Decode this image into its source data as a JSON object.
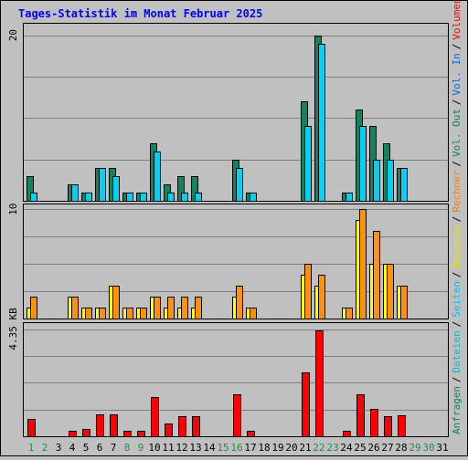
{
  "chart_data": {
    "type": "bar",
    "title": "Tages-Statistik im Monat Februar 2025",
    "grid": true,
    "categories": [
      "1",
      "2",
      "3",
      "4",
      "5",
      "6",
      "7",
      "8",
      "9",
      "10",
      "11",
      "12",
      "13",
      "14",
      "15",
      "16",
      "17",
      "18",
      "19",
      "20",
      "21",
      "22",
      "23",
      "24",
      "25",
      "26",
      "27",
      "28",
      "29",
      "30",
      "31"
    ],
    "weekend_days": [
      "1",
      "2",
      "8",
      "9",
      "15",
      "16",
      "22",
      "23",
      "29",
      "30"
    ],
    "colors": {
      "background": "#c0c0c0",
      "plot_background": "#c0c0c0",
      "grid": "#808080",
      "title": "#0000ff",
      "weekday_label": "#000000",
      "weekend_label": "#2a8a55"
    },
    "panels": [
      {
        "name": "requests",
        "y_tick_label": "20",
        "ylim": [
          0,
          20
        ],
        "series": [
          {
            "name": "Anfragen",
            "color": "#128261",
            "values": [
              3,
              0,
              0,
              2,
              1,
              4,
              4,
              1,
              1,
              7,
              2,
              3,
              3,
              0,
              0,
              5,
              1,
              0,
              0,
              0,
              12,
              20,
              0,
              1,
              11,
              9,
              7,
              4,
              0,
              0,
              0
            ]
          },
          {
            "name": "Dateien",
            "color": "#00d2f5",
            "values": [
              1,
              0,
              0,
              2,
              1,
              4,
              3,
              1,
              1,
              6,
              1,
              1,
              1,
              0,
              0,
              4,
              1,
              0,
              0,
              0,
              9,
              19,
              0,
              1,
              9,
              5,
              5,
              4,
              0,
              0,
              0
            ]
          },
          {
            "name": "Seiten",
            "color": "#00d2f5",
            "values": [
              0,
              0,
              0,
              0,
              0,
              0,
              0,
              0,
              0,
              0,
              0,
              0,
              0,
              0,
              0,
              0,
              0,
              0,
              0,
              0,
              0,
              0,
              0,
              0,
              0,
              0,
              0,
              0,
              0,
              0,
              0
            ]
          }
        ]
      },
      {
        "name": "visits",
        "y_tick_label": "10",
        "ylim": [
          0,
          10
        ],
        "series": [
          {
            "name": "Besuche",
            "color": "#ffff00",
            "values": [
              1,
              0,
              0,
              2,
              1,
              1,
              3,
              1,
              1,
              2,
              1,
              1,
              1,
              0,
              0,
              2,
              1,
              0,
              0,
              0,
              4,
              3,
              0,
              1,
              9,
              5,
              5,
              3,
              0,
              0,
              0
            ]
          },
          {
            "name": "Rechner",
            "color": "#ff9010",
            "values": [
              2,
              0,
              0,
              2,
              1,
              1,
              3,
              1,
              1,
              2,
              2,
              2,
              2,
              0,
              0,
              3,
              1,
              0,
              0,
              0,
              5,
              4,
              0,
              1,
              10,
              8,
              5,
              3,
              0,
              0,
              0
            ]
          }
        ]
      },
      {
        "name": "volume",
        "y_tick_label": "4.35 KB",
        "ylim": [
          0,
          4.35
        ],
        "series": [
          {
            "name": "Volumen",
            "color": "#ff0000",
            "values": [
              0.7,
              0,
              0,
              0.24,
              0.3,
              0.9,
              0.9,
              0.24,
              0.24,
              1.6,
              0.5,
              0.8,
              0.8,
              0,
              0,
              1.7,
              0.24,
              0,
              0,
              0,
              2.6,
              4.3,
              0,
              0.24,
              1.7,
              1.1,
              0.8,
              0.85,
              0,
              0,
              0
            ]
          }
        ]
      }
    ],
    "legend_items": [
      {
        "text": "Anfragen",
        "color": "#128261"
      },
      {
        "text": "/",
        "color": "#000000"
      },
      {
        "text": "Dateien",
        "color": "#00bbcc"
      },
      {
        "text": "/",
        "color": "#000000"
      },
      {
        "text": "Seiten",
        "color": "#00c0ff"
      },
      {
        "text": "/",
        "color": "#000000"
      },
      {
        "text": "Besuche",
        "color": "#e4e400"
      },
      {
        "text": "/",
        "color": "#000000"
      },
      {
        "text": "Rechner",
        "color": "#ff8000"
      },
      {
        "text": "/",
        "color": "#000000"
      },
      {
        "text": "Vol. Out",
        "color": "#128261"
      },
      {
        "text": "/",
        "color": "#000000"
      },
      {
        "text": "Vol. In",
        "color": "#0066ff"
      },
      {
        "text": "/",
        "color": "#000000"
      },
      {
        "text": "Volumen",
        "color": "#ff0000"
      }
    ]
  }
}
